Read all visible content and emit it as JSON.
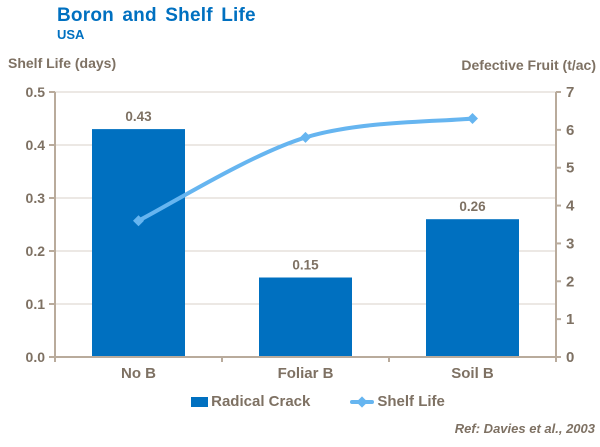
{
  "header": {
    "title": "Boron and Shelf Life",
    "subtitle": "USA"
  },
  "chart_data": {
    "type": "bar+line combo",
    "title": "Boron and Shelf Life",
    "subtitle": "USA",
    "categories": [
      "No B",
      "Foliar B",
      "Soil B"
    ],
    "series": [
      {
        "name": "Radical Crack",
        "type": "bar",
        "axis": "left",
        "values": [
          0.43,
          0.15,
          0.26
        ],
        "data_labels": [
          "0.43",
          "0.15",
          "0.26"
        ],
        "color": "#0070C0"
      },
      {
        "name": "Shelf Life",
        "type": "line",
        "axis": "right",
        "values": [
          3.6,
          5.8,
          6.3
        ],
        "smooth": true,
        "marker": "diamond",
        "color": "#66B5F0"
      }
    ],
    "left_axis": {
      "title": "Shelf Life (days)",
      "min": 0,
      "max": 0.5,
      "ticks": [
        "0.0",
        "0.1",
        "0.2",
        "0.3",
        "0.4",
        "0.5"
      ]
    },
    "right_axis": {
      "title": "Defective Fruit (t/ac)",
      "min": 0,
      "max": 7,
      "ticks": [
        "0",
        "1",
        "2",
        "3",
        "4",
        "5",
        "6",
        "7"
      ]
    },
    "grid": true,
    "legend_position": "bottom",
    "annotation": "Ref: Davies et al., 2003"
  },
  "colors": {
    "title": "#0070C0",
    "text": "#7E7163",
    "axis_line": "#B9AB9C",
    "grid_line": "#D9D2C9",
    "bar": "#0070C0",
    "line": "#66B5F0"
  }
}
